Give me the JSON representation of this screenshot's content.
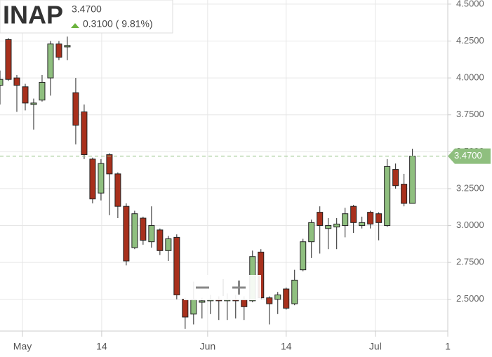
{
  "chart_data": {
    "type": "candlestick",
    "symbol": "INAP",
    "price": "3.4700",
    "change": "0.3100 ( 9.81%)",
    "x": [
      0,
      1,
      2,
      3,
      4,
      5,
      6,
      7,
      8,
      9,
      10,
      11,
      12,
      13,
      14,
      15,
      16,
      17,
      18,
      19,
      20,
      21,
      22,
      23,
      24,
      25,
      26,
      27,
      28,
      29,
      30,
      31,
      32,
      33,
      34,
      35,
      36,
      37,
      38,
      39,
      40,
      41,
      42,
      43,
      44,
      45,
      46,
      47,
      48,
      49
    ],
    "open": [
      3.95,
      4.26,
      4.0,
      3.94,
      3.82,
      3.85,
      4.0,
      4.23,
      4.21,
      3.9,
      3.77,
      3.45,
      3.22,
      3.48,
      3.35,
      3.13,
      2.85,
      3.05,
      2.89,
      2.97,
      2.83,
      2.92,
      2.5,
      2.4,
      2.48,
      2.49,
      2.5,
      2.49,
      2.5,
      2.5,
      2.49,
      2.82,
      2.51,
      2.5,
      2.57,
      2.47,
      2.7,
      2.89,
      3.09,
      2.98,
      2.99,
      3.0,
      3.13,
      3.0,
      3.09,
      3.08,
      3.0,
      3.38,
      3.28,
      3.15
    ],
    "high": [
      4.05,
      4.27,
      4.02,
      3.96,
      3.86,
      4.02,
      4.25,
      4.25,
      4.28,
      4.0,
      3.82,
      3.46,
      3.45,
      3.49,
      3.36,
      3.15,
      3.1,
      3.06,
      3.13,
      2.98,
      2.93,
      2.94,
      2.51,
      2.62,
      2.51,
      2.53,
      2.52,
      2.54,
      2.53,
      2.52,
      2.83,
      2.84,
      2.52,
      2.55,
      2.58,
      2.7,
      2.91,
      3.04,
      3.13,
      3.05,
      3.05,
      3.12,
      3.14,
      3.06,
      3.1,
      3.09,
      3.45,
      3.42,
      3.35,
      3.52
    ],
    "low": [
      3.82,
      3.98,
      3.77,
      3.78,
      3.65,
      3.84,
      3.88,
      4.12,
      4.12,
      3.55,
      3.45,
      3.15,
      3.17,
      3.07,
      3.05,
      2.73,
      2.84,
      2.87,
      2.85,
      2.8,
      2.76,
      2.5,
      2.3,
      2.33,
      2.37,
      2.4,
      2.36,
      2.36,
      2.37,
      2.36,
      2.48,
      2.5,
      2.33,
      2.4,
      2.43,
      2.46,
      2.69,
      2.78,
      2.81,
      2.84,
      2.84,
      2.92,
      2.95,
      2.98,
      2.98,
      2.9,
      2.99,
      3.25,
      3.13,
      3.15
    ],
    "close": [
      3.99,
      3.99,
      3.95,
      3.83,
      3.83,
      3.97,
      4.23,
      4.14,
      4.22,
      3.68,
      3.48,
      3.18,
      3.42,
      3.35,
      3.13,
      2.76,
      3.08,
      2.9,
      3.0,
      2.83,
      2.91,
      2.53,
      2.38,
      2.5,
      2.49,
      2.5,
      2.49,
      2.5,
      2.49,
      2.45,
      2.79,
      2.51,
      2.47,
      2.53,
      2.44,
      2.63,
      2.89,
      3.02,
      3.0,
      3.0,
      3.01,
      3.08,
      3.02,
      3.02,
      3.01,
      3.02,
      3.4,
      3.27,
      3.15,
      3.47
    ],
    "up_color": "#8fbf7f",
    "down_color": "#a8301c",
    "last_price": {
      "value": 3.47,
      "label": "3.4700"
    },
    "last_price_color": "#8fbf7f",
    "xlim": [
      0,
      53.2
    ],
    "xticks": [
      {
        "value": 2.67,
        "label": "May"
      },
      {
        "value": 12.08,
        "label": "14"
      },
      {
        "value": 24.67,
        "label": "Jun"
      },
      {
        "value": 34,
        "label": "14"
      },
      {
        "value": 44.6,
        "label": "Jul"
      },
      {
        "value": 53.2,
        "label": "1"
      }
    ],
    "ylim": [
      2.285,
      4.528
    ],
    "yticks": [
      {
        "value": 4.5,
        "label": "4.5000"
      },
      {
        "value": 4.25,
        "label": "4.2500"
      },
      {
        "value": 4,
        "label": "4.0000"
      },
      {
        "value": 3.75,
        "label": "3.7500"
      },
      {
        "value": 3.5,
        "label": "3.5000"
      },
      {
        "value": 3.25,
        "label": "3.2500"
      },
      {
        "value": 3,
        "label": "3.0000"
      },
      {
        "value": 2.75,
        "label": "2.7500"
      },
      {
        "value": 2.5,
        "label": "2.5000"
      }
    ],
    "grid": true
  }
}
